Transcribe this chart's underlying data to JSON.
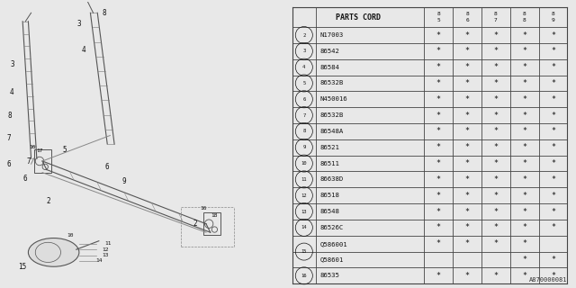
{
  "table_header": "PARTS CORD",
  "col_headers": [
    "8\n5",
    "8\n6",
    "8\n7",
    "8\n8",
    "8\n9"
  ],
  "rows": [
    {
      "num": "2",
      "part": "N17003",
      "cols": [
        "*",
        "*",
        "*",
        "*",
        "*"
      ]
    },
    {
      "num": "3",
      "part": "86542",
      "cols": [
        "*",
        "*",
        "*",
        "*",
        "*"
      ]
    },
    {
      "num": "4",
      "part": "86584",
      "cols": [
        "*",
        "*",
        "*",
        "*",
        "*"
      ]
    },
    {
      "num": "5",
      "part": "86532B",
      "cols": [
        "*",
        "*",
        "*",
        "*",
        "*"
      ]
    },
    {
      "num": "6",
      "part": "N450016",
      "cols": [
        "*",
        "*",
        "*",
        "*",
        "*"
      ]
    },
    {
      "num": "7",
      "part": "86532B",
      "cols": [
        "*",
        "*",
        "*",
        "*",
        "*"
      ]
    },
    {
      "num": "8",
      "part": "86548A",
      "cols": [
        "*",
        "*",
        "*",
        "*",
        "*"
      ]
    },
    {
      "num": "9",
      "part": "86521",
      "cols": [
        "*",
        "*",
        "*",
        "*",
        "*"
      ]
    },
    {
      "num": "10",
      "part": "86511",
      "cols": [
        "*",
        "*",
        "*",
        "*",
        "*"
      ]
    },
    {
      "num": "11",
      "part": "86638D",
      "cols": [
        "*",
        "*",
        "*",
        "*",
        "*"
      ]
    },
    {
      "num": "12",
      "part": "86518",
      "cols": [
        "*",
        "*",
        "*",
        "*",
        "*"
      ]
    },
    {
      "num": "13",
      "part": "86548",
      "cols": [
        "*",
        "*",
        "*",
        "*",
        "*"
      ]
    },
    {
      "num": "14",
      "part": "86526C",
      "cols": [
        "*",
        "*",
        "*",
        "*",
        "*"
      ]
    },
    {
      "num": "15a",
      "part": "Q586001",
      "cols": [
        "*",
        "*",
        "*",
        "*",
        ""
      ]
    },
    {
      "num": "15b",
      "part": "Q58601",
      "cols": [
        "",
        "",
        "",
        "*",
        "*"
      ]
    },
    {
      "num": "16",
      "part": "86535",
      "cols": [
        "*",
        "*",
        "*",
        "*",
        "*"
      ]
    }
  ],
  "bg_color": "#e8e8e8",
  "table_bg": "#ffffff",
  "border_color": "#444444",
  "text_color": "#111111",
  "watermark": "A870000081",
  "diag_line_color": "#555555"
}
